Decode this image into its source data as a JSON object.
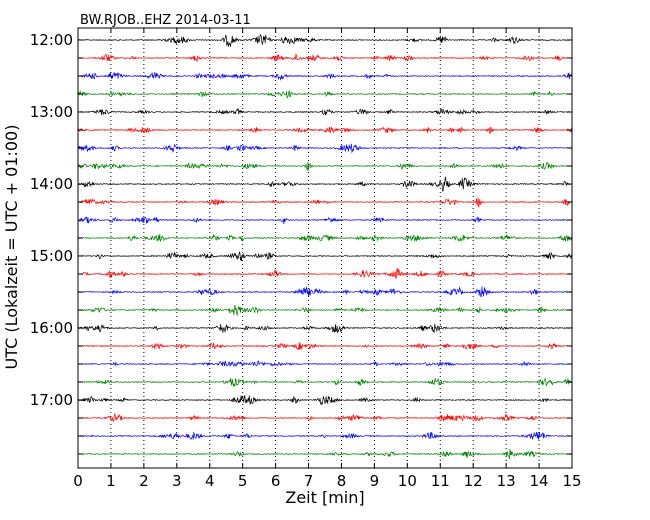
{
  "chart_data": {
    "type": "line",
    "title": "BW.RJOB..EHZ 2014-03-11",
    "xlabel": "Zeit  [min]",
    "ylabel": "UTC (Lokalzeit = UTC + 01:00)",
    "xlim": [
      0,
      15
    ],
    "x_ticks": [
      "0",
      "1",
      "2",
      "3",
      "4",
      "5",
      "6",
      "7",
      "8",
      "9",
      "10",
      "11",
      "12",
      "13",
      "14",
      "15"
    ],
    "y_ticks": [
      "12:00",
      "13:00",
      "14:00",
      "15:00",
      "16:00",
      "17:00"
    ],
    "grid": "vertical dotted at each minute",
    "trace_interval_minutes": 15,
    "trace_start": "12:00",
    "trace_count": 24,
    "color_cycle": [
      "#000000",
      "#ff0000",
      "#0000ff",
      "#008000"
    ]
  }
}
